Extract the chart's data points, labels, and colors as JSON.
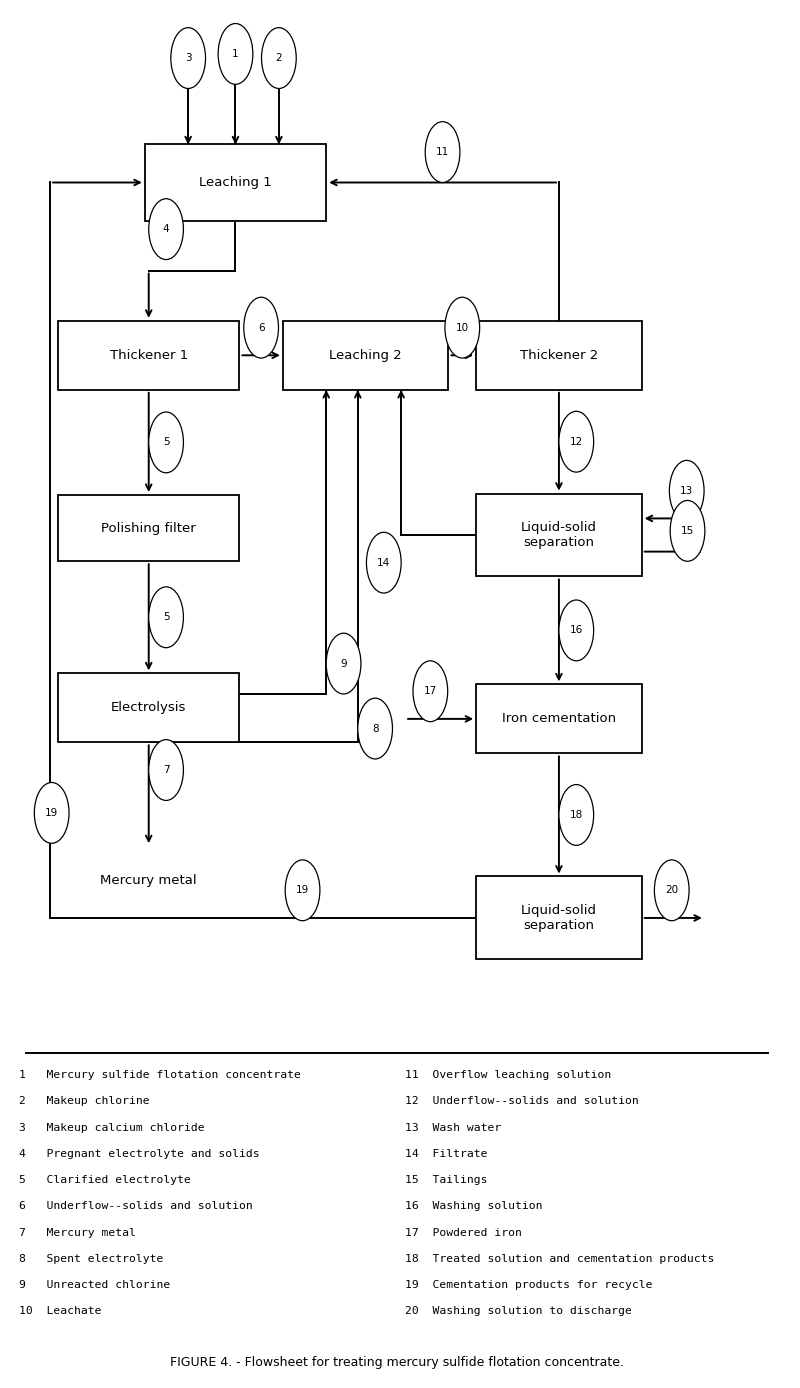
{
  "figsize": [
    8.0,
    13.88
  ],
  "dpi": 100,
  "bg_color": "#ffffff",
  "legend_items_left": [
    "1   Mercury sulfide flotation concentrate",
    "2   Makeup chlorine",
    "3   Makeup calcium chloride",
    "4   Pregnant electrolyte and solids",
    "5   Clarified electrolyte",
    "6   Underflow--solids and solution",
    "7   Mercury metal",
    "8   Spent electrolyte",
    "9   Unreacted chlorine",
    "10  Leachate"
  ],
  "legend_items_right": [
    "11  Overflow leaching solution",
    "12  Underflow--solids and solution",
    "13  Wash water",
    "14  Filtrate",
    "15  Tailings",
    "16  Washing solution",
    "17  Powdered iron",
    "18  Treated solution and cementation products",
    "19  Cementation products for recycle",
    "20  Washing solution to discharge"
  ],
  "figure_caption": "FIGURE 4. - Flowsheet for treating mercury sulfide flotation concentrate."
}
